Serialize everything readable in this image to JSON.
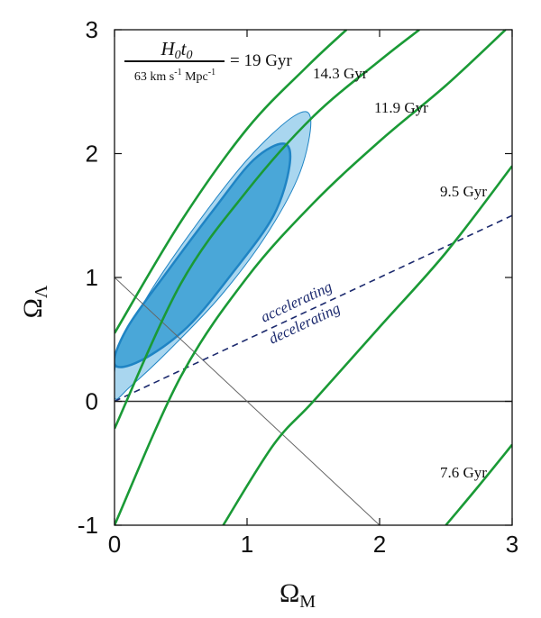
{
  "chart_data": {
    "type": "line",
    "xlabel": "Ω",
    "xlabel_sub": "M",
    "ylabel": "Ω",
    "ylabel_sub": "Λ",
    "xlim": [
      0,
      3
    ],
    "ylim": [
      -1,
      3
    ],
    "x_ticks": [
      0,
      1,
      2,
      3
    ],
    "y_ticks": [
      -1,
      0,
      1,
      2,
      3
    ],
    "x_tick_labels": [
      "0",
      "1",
      "2",
      "3"
    ],
    "y_tick_labels": [
      "-1",
      "0",
      "1",
      "2",
      "3"
    ],
    "formula": {
      "numerator_H": "H",
      "numerator_H_sub": "0",
      "numerator_t": "t",
      "numerator_t_sub": "0",
      "denominator_pre": "63 km s",
      "denominator_exp1": "-1",
      "denominator_mid": " Mpc",
      "denominator_exp2": "-1",
      "equals": "= 19 Gyr"
    },
    "age_contours": [
      {
        "label": "19 Gyr",
        "points": [
          [
            0.0,
            0.55
          ],
          [
            0.5,
            1.45
          ],
          [
            1.0,
            2.2
          ],
          [
            1.45,
            2.7
          ],
          [
            1.75,
            3.0
          ]
        ]
      },
      {
        "label": "14.3 Gyr",
        "points": [
          [
            0.0,
            -0.22
          ],
          [
            0.5,
            0.95
          ],
          [
            1.0,
            1.7
          ],
          [
            1.5,
            2.3
          ],
          [
            2.0,
            2.75
          ],
          [
            2.3,
            3.0
          ]
        ]
      },
      {
        "label": "11.9 Gyr",
        "points": [
          [
            0.0,
            -1.0
          ],
          [
            0.5,
            0.2
          ],
          [
            1.0,
            1.0
          ],
          [
            1.5,
            1.6
          ],
          [
            2.0,
            2.1
          ],
          [
            2.5,
            2.55
          ],
          [
            2.95,
            3.0
          ]
        ]
      },
      {
        "label": "9.5 Gyr",
        "points": [
          [
            0.82,
            -1.0
          ],
          [
            1.2,
            -0.35
          ],
          [
            1.5,
            0.0
          ],
          [
            2.0,
            0.6
          ],
          [
            2.5,
            1.2
          ],
          [
            3.0,
            1.9
          ]
        ]
      },
      {
        "label": "7.6 Gyr",
        "points": [
          [
            2.5,
            -1.0
          ],
          [
            2.75,
            -0.68
          ],
          [
            3.0,
            -0.35
          ]
        ]
      }
    ],
    "age_labels": [
      "19 Gyr",
      "14.3 Gyr",
      "11.9 Gyr",
      "9.5 Gyr",
      "7.6 Gyr"
    ],
    "acceleration_line": {
      "points": [
        [
          0.0,
          0.0
        ],
        [
          3.0,
          1.5
        ]
      ],
      "label_above": "accelerating",
      "label_below": "decelerating"
    },
    "flat_universe_line": {
      "points": [
        [
          0.0,
          1.0
        ],
        [
          2.0,
          -1.0
        ]
      ]
    },
    "zero_line": {
      "points": [
        [
          0.0,
          0.0
        ],
        [
          3.0,
          0.0
        ]
      ]
    },
    "confidence_regions": [
      {
        "level": "outer",
        "points": [
          [
            0.0,
            0.03
          ],
          [
            0.03,
            0.38
          ],
          [
            0.25,
            0.85
          ],
          [
            0.6,
            1.4
          ],
          [
            1.0,
            1.95
          ],
          [
            1.35,
            2.3
          ],
          [
            1.48,
            2.28
          ],
          [
            1.4,
            1.85
          ],
          [
            1.15,
            1.35
          ],
          [
            0.8,
            0.85
          ],
          [
            0.4,
            0.4
          ],
          [
            0.12,
            0.12
          ],
          [
            0.0,
            0.03
          ]
        ]
      },
      {
        "level": "inner",
        "points": [
          [
            0.0,
            0.3
          ],
          [
            0.1,
            0.6
          ],
          [
            0.4,
            1.05
          ],
          [
            0.75,
            1.55
          ],
          [
            1.05,
            1.95
          ],
          [
            1.28,
            2.08
          ],
          [
            1.32,
            1.9
          ],
          [
            1.2,
            1.5
          ],
          [
            0.9,
            1.05
          ],
          [
            0.55,
            0.6
          ],
          [
            0.2,
            0.33
          ],
          [
            0.0,
            0.3
          ]
        ]
      }
    ],
    "colors": {
      "age_contour": "#1a9a36",
      "outer_region": "#a9d6ef",
      "inner_region": "#4aa7d8",
      "region_edge": "#1f84c4",
      "accel_line": "#1c2a6e",
      "flat_line": "#666666",
      "zero_line": "#333333"
    }
  }
}
